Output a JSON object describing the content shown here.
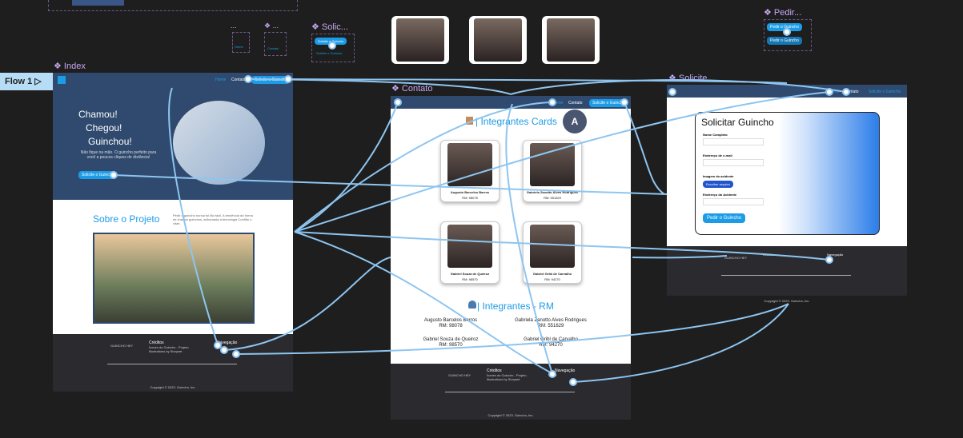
{
  "flow": "Flow 1",
  "component_labels": [
    "...",
    "❖ ...",
    "❖ Solic...",
    "❖ Pedir..."
  ],
  "components": {
    "nav_home": "Home",
    "nav_contato": "Contato",
    "solicite_button": "Solicite o Guincho",
    "solicite_link": "Solicite o Guincho",
    "pedir_buttons": [
      "Pedir o Guincho",
      "Pedir o Guincho"
    ]
  },
  "avatar": "A",
  "index": {
    "label": "❖ Index",
    "nav": [
      "Home",
      "Contato",
      "Solicite o Guincho"
    ],
    "hero_lines": [
      "Chamou!",
      "Chegou!",
      "Guinchou!"
    ],
    "hero_text": "Não fique na mão. O guincho perfeito para você a poucos cliques de distância!",
    "hero_button": "Solicite o Guincho",
    "about_title": "Sobre o Projeto",
    "about_text": "Pedir o guincho nunca foi tão fácil. A tendência da forma de chamar guinchos, adicionada a tecnologia Conflito o vitae."
  },
  "footer": {
    "brand": "GUINCHO HEY",
    "credits_title": "Créditos",
    "credits_text": "Ícones do Guincho - Projeto Illustrations by Storyset",
    "nav_title": "Navegação",
    "copyright": "Copyright © 2023. Guincho, Inc."
  },
  "contato": {
    "label": "❖ Contato",
    "nav": [
      "Home",
      "Contato",
      "Solicite o Guincho"
    ],
    "cards_title": "| Integrantes Cards",
    "members": [
      {
        "name": "Augusto Barcelos Barros",
        "rm": "RM: 98078"
      },
      {
        "name": "Gabriela Zanotto Alves Rodrigues",
        "rm": "RM: 551629"
      },
      {
        "name": "Gabriel Souza de Queiroz",
        "rm": "RM: 98570"
      },
      {
        "name": "Gabriel Gribl de Carvalho",
        "rm": "RM: 94270"
      }
    ],
    "rm_title": "| Integrantes - RM"
  },
  "solicite": {
    "label": "❖ Solicite",
    "nav": [
      "Home",
      "Contato",
      "Solicite o Guincho"
    ],
    "title": "Solicitar Guincho",
    "fields": [
      "Nome Completo",
      "Endereço de e-mail",
      "Imagem do acidente",
      "Endereço do Acidente"
    ],
    "file_button": "Escolher arquivo",
    "submit": "Pedir o Guincho"
  }
}
